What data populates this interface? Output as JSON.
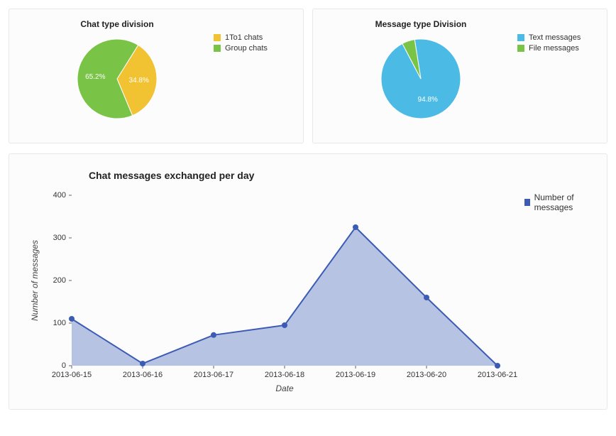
{
  "pie1": {
    "type": "pie",
    "title": "Chat type division",
    "slices": [
      {
        "label": "1To1 chats",
        "value": 34.8,
        "color": "#f1c232",
        "showPct": true
      },
      {
        "label": "Group chats",
        "value": 65.2,
        "color": "#79c346",
        "showPct": true
      }
    ],
    "radius": 56,
    "startAngleDeg": 32,
    "pctFont": 10,
    "pctColor": "#ffffff",
    "titleFont": 12
  },
  "pie2": {
    "type": "pie",
    "title": "Message type Division",
    "slices": [
      {
        "label": "Text messages",
        "value": 94.8,
        "color": "#4bbbe6",
        "showPct": true
      },
      {
        "label": "File messages",
        "value": 5.2,
        "color": "#79c346",
        "showPct": false
      }
    ],
    "radius": 56,
    "startAngleDeg": -9,
    "pctFont": 10,
    "pctColor": "#ffffff",
    "titleFont": 12
  },
  "area": {
    "type": "area",
    "title": "Chat messages exchanged per day",
    "xlabel": "Date",
    "ylabel": "Number of messages",
    "categories": [
      "2013-06-15",
      "2013-06-16",
      "2013-06-17",
      "2013-06-18",
      "2013-06-19",
      "2013-06-20",
      "2013-06-21"
    ],
    "series": [
      {
        "name": "Number of messages",
        "values": [
          110,
          5,
          72,
          95,
          325,
          160,
          0
        ],
        "lineColor": "#3b5bb5",
        "fillColor": "#aab8dd",
        "fillOpacity": 0.85,
        "markerColor": "#3b5bb5",
        "markerSize": 4,
        "lineWidth": 2
      }
    ],
    "ylim": [
      0,
      400
    ],
    "ytickStep": 100,
    "plotWidth": 600,
    "plotHeight": 240,
    "marginLeft": 72,
    "marginBottom": 42,
    "marginTop": 10,
    "background": "#fcfcfc",
    "tickFont": 11,
    "titleFont": 14,
    "axisLabelFont": 12,
    "legendName": "Number of messages"
  },
  "colors": {
    "cardBg": "#fcfcfc",
    "cardBorder": "#e8e8e8",
    "textDark": "#222222"
  }
}
